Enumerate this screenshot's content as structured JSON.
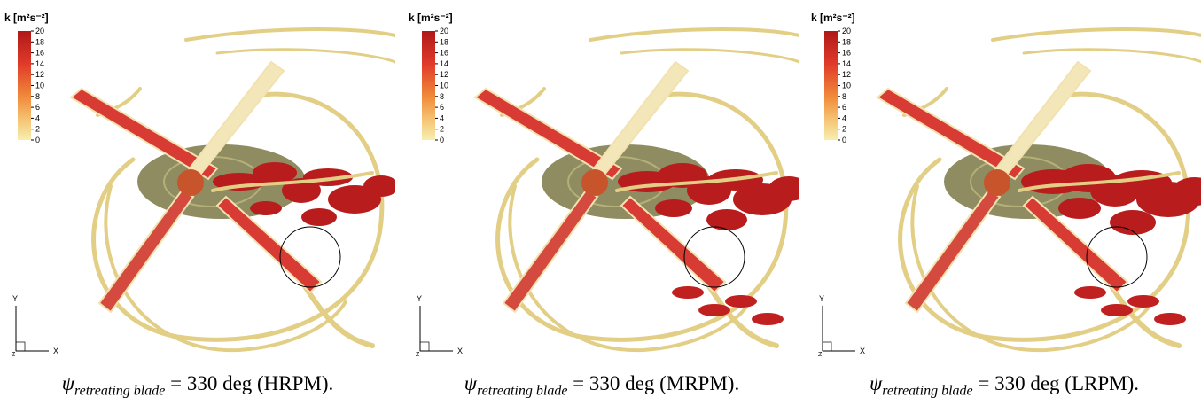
{
  "panels": [
    {
      "legend": {
        "title": "k [m²s⁻²]",
        "ticks": [
          20,
          18,
          16,
          14,
          12,
          10,
          8,
          6,
          4,
          2,
          0
        ]
      },
      "axes": {
        "y": "Y",
        "x": "X",
        "z": "Z"
      },
      "caption": {
        "symbol": "ψ",
        "subscript": "retreating blade",
        "text": "= 330 deg (HRPM)."
      }
    },
    {
      "legend": {
        "title": "k [m²s⁻²]",
        "ticks": [
          20,
          18,
          16,
          14,
          12,
          10,
          8,
          6,
          4,
          2,
          0
        ]
      },
      "axes": {
        "y": "Y",
        "x": "X",
        "z": "Z"
      },
      "caption": {
        "symbol": "ψ",
        "subscript": "retreating blade",
        "text": "= 330 deg (MRPM)."
      }
    },
    {
      "legend": {
        "title": "k [m²s⁻²]",
        "ticks": [
          20,
          18,
          16,
          14,
          12,
          10,
          8,
          6,
          4,
          2,
          0
        ]
      },
      "axes": {
        "y": "Y",
        "x": "X",
        "z": "Z"
      },
      "caption": {
        "symbol": "ψ",
        "subscript": "retreating blade",
        "text": "= 330 deg (LRPM)."
      }
    }
  ]
}
